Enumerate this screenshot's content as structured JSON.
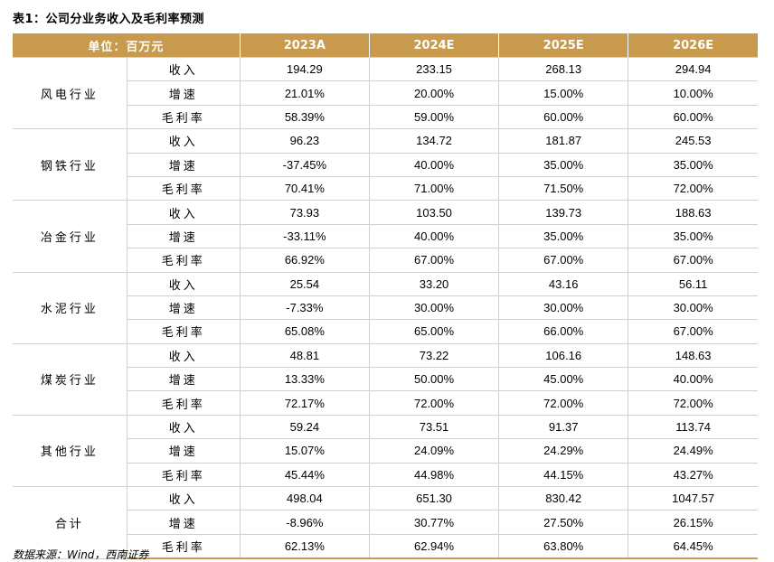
{
  "title": "表1：公司分业务收入及毛利率预测",
  "header": {
    "unit_label": "单位：百万元",
    "years": [
      "2023A",
      "2024E",
      "2025E",
      "2026E"
    ]
  },
  "groups": [
    {
      "name": "风电行业",
      "rows": [
        {
          "metric": "收入",
          "values": [
            "194.29",
            "233.15",
            "268.13",
            "294.94"
          ]
        },
        {
          "metric": "增速",
          "values": [
            "21.01%",
            "20.00%",
            "15.00%",
            "10.00%"
          ]
        },
        {
          "metric": "毛利率",
          "values": [
            "58.39%",
            "59.00%",
            "60.00%",
            "60.00%"
          ]
        }
      ]
    },
    {
      "name": "钢铁行业",
      "rows": [
        {
          "metric": "收入",
          "values": [
            "96.23",
            "134.72",
            "181.87",
            "245.53"
          ]
        },
        {
          "metric": "增速",
          "values": [
            "-37.45%",
            "40.00%",
            "35.00%",
            "35.00%"
          ]
        },
        {
          "metric": "毛利率",
          "values": [
            "70.41%",
            "71.00%",
            "71.50%",
            "72.00%"
          ]
        }
      ]
    },
    {
      "name": "冶金行业",
      "rows": [
        {
          "metric": "收入",
          "values": [
            "73.93",
            "103.50",
            "139.73",
            "188.63"
          ]
        },
        {
          "metric": "增速",
          "values": [
            "-33.11%",
            "40.00%",
            "35.00%",
            "35.00%"
          ]
        },
        {
          "metric": "毛利率",
          "values": [
            "66.92%",
            "67.00%",
            "67.00%",
            "67.00%"
          ]
        }
      ]
    },
    {
      "name": "水泥行业",
      "rows": [
        {
          "metric": "收入",
          "values": [
            "25.54",
            "33.20",
            "43.16",
            "56.11"
          ]
        },
        {
          "metric": "增速",
          "values": [
            "-7.33%",
            "30.00%",
            "30.00%",
            "30.00%"
          ]
        },
        {
          "metric": "毛利率",
          "values": [
            "65.08%",
            "65.00%",
            "66.00%",
            "67.00%"
          ]
        }
      ]
    },
    {
      "name": "煤炭行业",
      "rows": [
        {
          "metric": "收入",
          "values": [
            "48.81",
            "73.22",
            "106.16",
            "148.63"
          ]
        },
        {
          "metric": "增速",
          "values": [
            "13.33%",
            "50.00%",
            "45.00%",
            "40.00%"
          ]
        },
        {
          "metric": "毛利率",
          "values": [
            "72.17%",
            "72.00%",
            "72.00%",
            "72.00%"
          ]
        }
      ]
    },
    {
      "name": "其他行业",
      "rows": [
        {
          "metric": "收入",
          "values": [
            "59.24",
            "73.51",
            "91.37",
            "113.74"
          ]
        },
        {
          "metric": "增速",
          "values": [
            "15.07%",
            "24.09%",
            "24.29%",
            "24.49%"
          ]
        },
        {
          "metric": "毛利率",
          "values": [
            "45.44%",
            "44.98%",
            "44.15%",
            "43.27%"
          ]
        }
      ]
    },
    {
      "name": "合计",
      "rows": [
        {
          "metric": "收入",
          "values": [
            "498.04",
            "651.30",
            "830.42",
            "1047.57"
          ]
        },
        {
          "metric": "增速",
          "values": [
            "-8.96%",
            "30.77%",
            "27.50%",
            "26.15%"
          ]
        },
        {
          "metric": "毛利率",
          "values": [
            "62.13%",
            "62.94%",
            "63.80%",
            "64.45%"
          ]
        }
      ]
    }
  ],
  "source": "数据来源：Wind，西南证券",
  "colors": {
    "header_bg": "#c89a4e",
    "header_text": "#ffffff",
    "grid": "#d0d0d0"
  }
}
